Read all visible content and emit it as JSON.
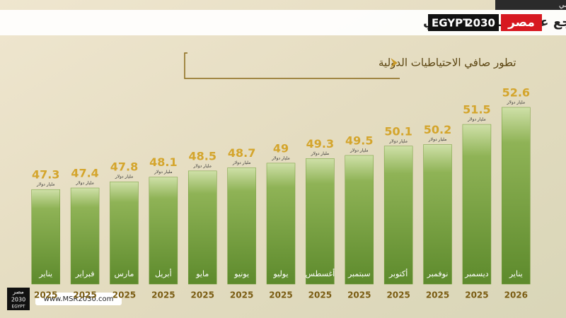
{
  "chart_data": {
    "type": "bar",
    "title": "ارتفاع صافي الاحتياطيات الدولية مع تراجع عجز الحساب الجاري",
    "subtitle": "تطور صافي الاحتياطيات الدولية",
    "unit": "مليار دولار",
    "categories": [
      "يناير",
      "فبراير",
      "مارس",
      "أبريل",
      "مايو",
      "يونيو",
      "يوليو",
      "أغسطس",
      "سبتمبر",
      "أكتوبر",
      "نوفمبر",
      "ديسمبر",
      "يناير"
    ],
    "years": [
      "2025",
      "2025",
      "2025",
      "2025",
      "2025",
      "2025",
      "2025",
      "2025",
      "2025",
      "2025",
      "2025",
      "2025",
      "2026"
    ],
    "values": [
      47.3,
      47.4,
      47.8,
      48.1,
      48.5,
      48.7,
      49,
      49.3,
      49.5,
      50.1,
      50.2,
      51.5,
      52.6
    ],
    "color": "#6f9a35",
    "ylim": [
      41.2,
      53.6
    ]
  },
  "branding": {
    "org": "المركز الإعلامي",
    "logo_ar": "مصر",
    "logo_en": "EGYPT",
    "logo_year": "2030",
    "website": "www.MSR2030.com"
  }
}
